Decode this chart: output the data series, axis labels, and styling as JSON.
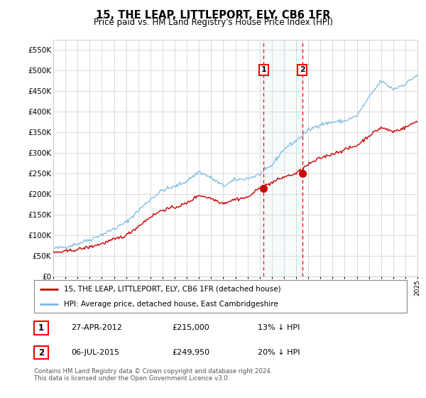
{
  "title": "15, THE LEAP, LITTLEPORT, ELY, CB6 1FR",
  "subtitle": "Price paid vs. HM Land Registry's House Price Index (HPI)",
  "ylim": [
    0,
    575000
  ],
  "yticks": [
    0,
    50000,
    100000,
    150000,
    200000,
    250000,
    300000,
    350000,
    400000,
    450000,
    500000,
    550000
  ],
  "ytick_labels": [
    "£0",
    "£50K",
    "£100K",
    "£150K",
    "£200K",
    "£250K",
    "£300K",
    "£350K",
    "£400K",
    "£450K",
    "£500K",
    "£550K"
  ],
  "hpi_color": "#7cb9e0",
  "price_color": "#cc0000",
  "marker1_date": 2012.32,
  "marker1_price": 215000,
  "marker1_label": "1",
  "marker1_text": "27-APR-2012",
  "marker1_value_text": "£215,000",
  "marker1_hpi_text": "13% ↓ HPI",
  "marker2_date": 2015.51,
  "marker2_price": 249950,
  "marker2_label": "2",
  "marker2_text": "06-JUL-2015",
  "marker2_value_text": "£249,950",
  "marker2_hpi_text": "20% ↓ HPI",
  "legend_label_price": "15, THE LEAP, LITTLEPORT, ELY, CB6 1FR (detached house)",
  "legend_label_hpi": "HPI: Average price, detached house, East Cambridgeshire",
  "footer": "Contains HM Land Registry data © Crown copyright and database right 2024.\nThis data is licensed under the Open Government Licence v3.0.",
  "xmin": 1995,
  "xmax": 2025,
  "hpi_base": {
    "1995": 68000,
    "1996": 72000,
    "1997": 80000,
    "1998": 90000,
    "1999": 102000,
    "2000": 116000,
    "2001": 132000,
    "2002": 160000,
    "2003": 188000,
    "2004": 210000,
    "2005": 218000,
    "2006": 232000,
    "2007": 255000,
    "2008": 240000,
    "2009": 220000,
    "2010": 235000,
    "2011": 238000,
    "2012": 248000,
    "2013": 270000,
    "2014": 310000,
    "2015": 330000,
    "2016": 355000,
    "2017": 370000,
    "2018": 375000,
    "2019": 378000,
    "2020": 390000,
    "2021": 435000,
    "2022": 475000,
    "2023": 455000,
    "2024": 468000,
    "2025": 490000
  },
  "price_base": {
    "1995": 58000,
    "1996": 61000,
    "1997": 66000,
    "1998": 72000,
    "1999": 80000,
    "2000": 90000,
    "2001": 100000,
    "2002": 122000,
    "2003": 145000,
    "2004": 162000,
    "2005": 168000,
    "2006": 178000,
    "2007": 198000,
    "2008": 190000,
    "2009": 178000,
    "2010": 188000,
    "2011": 192000,
    "2012": 215000,
    "2013": 228000,
    "2014": 242000,
    "2015": 249950,
    "2016": 272000,
    "2017": 288000,
    "2018": 298000,
    "2019": 308000,
    "2020": 318000,
    "2021": 342000,
    "2022": 362000,
    "2023": 352000,
    "2024": 362000,
    "2025": 378000
  }
}
